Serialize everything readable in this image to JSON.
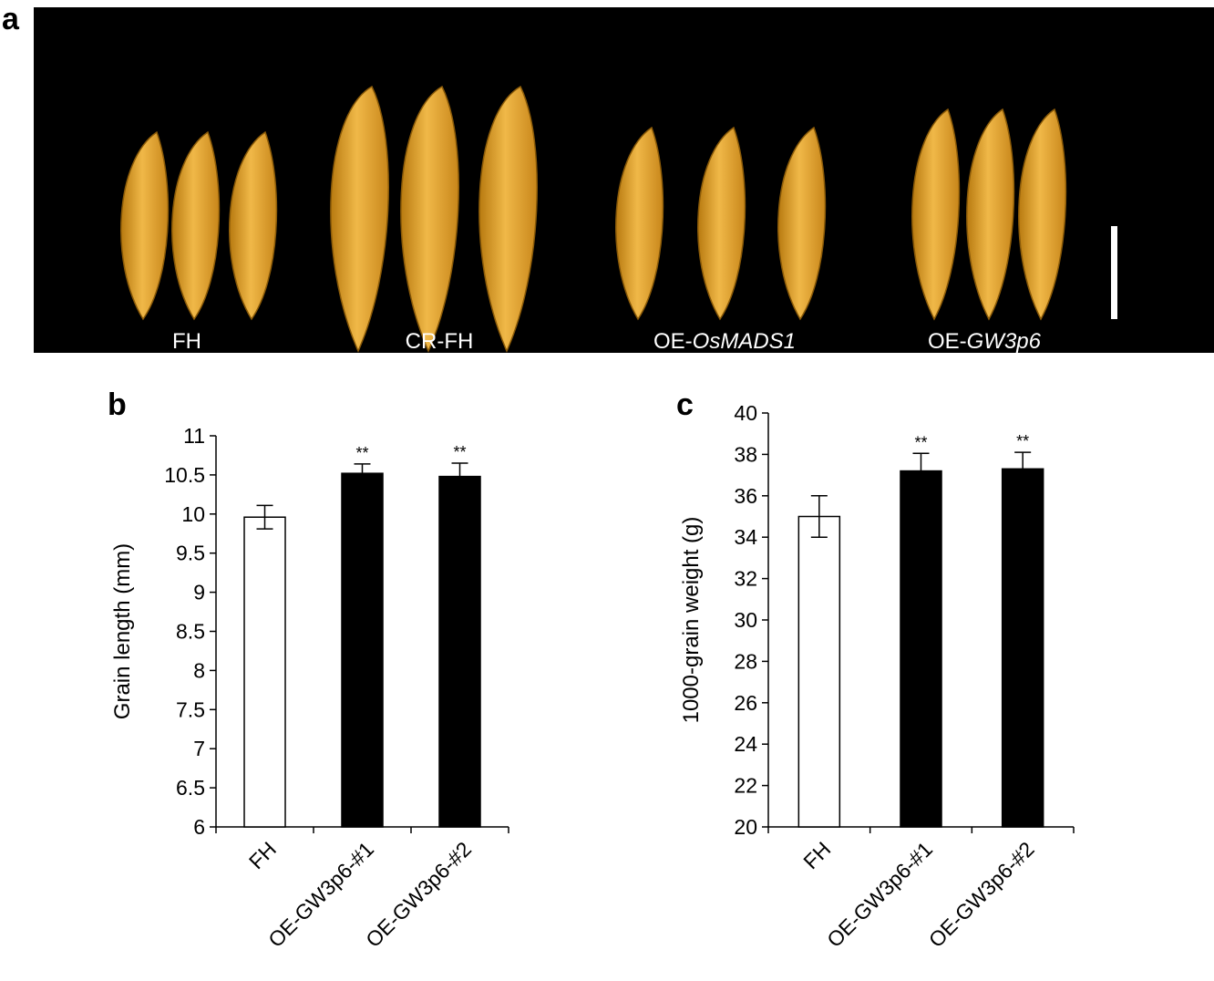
{
  "panel_a": {
    "label": "a",
    "groups": [
      {
        "text": "FH"
      },
      {
        "text": "CR-FH"
      },
      {
        "text": "OE-",
        "italic": "OsMADS1"
      },
      {
        "text": "OE-",
        "italic": "GW3p6"
      }
    ]
  },
  "chart_data": [
    {
      "type": "bar",
      "panel": "b",
      "y_label": "Grain length (mm)",
      "categories": [
        "FH",
        "OE-GW3p6-#1",
        "OE-GW3p6-#2"
      ],
      "values": [
        9.96,
        10.52,
        10.48
      ],
      "errors": [
        0.15,
        0.12,
        0.17
      ],
      "significance": [
        null,
        "**",
        "**"
      ],
      "colors": [
        "#ffffff",
        "#000000",
        "#000000"
      ],
      "ylim": [
        6,
        11
      ],
      "yticks": [
        6,
        6.5,
        7,
        7.5,
        8,
        8.5,
        9,
        9.5,
        10,
        10.5,
        11
      ]
    },
    {
      "type": "bar",
      "panel": "c",
      "y_label": "1000-grain weight  (g)",
      "categories": [
        "FH",
        "OE-GW3p6-#1",
        "OE-GW3p6-#2"
      ],
      "values": [
        35.0,
        37.2,
        37.3
      ],
      "errors": [
        1.0,
        0.85,
        0.8
      ],
      "significance": [
        null,
        "**",
        "**"
      ],
      "colors": [
        "#ffffff",
        "#000000",
        "#000000"
      ],
      "ylim": [
        20,
        40
      ],
      "yticks": [
        20,
        22,
        24,
        26,
        28,
        30,
        32,
        34,
        36,
        38,
        40
      ]
    }
  ]
}
